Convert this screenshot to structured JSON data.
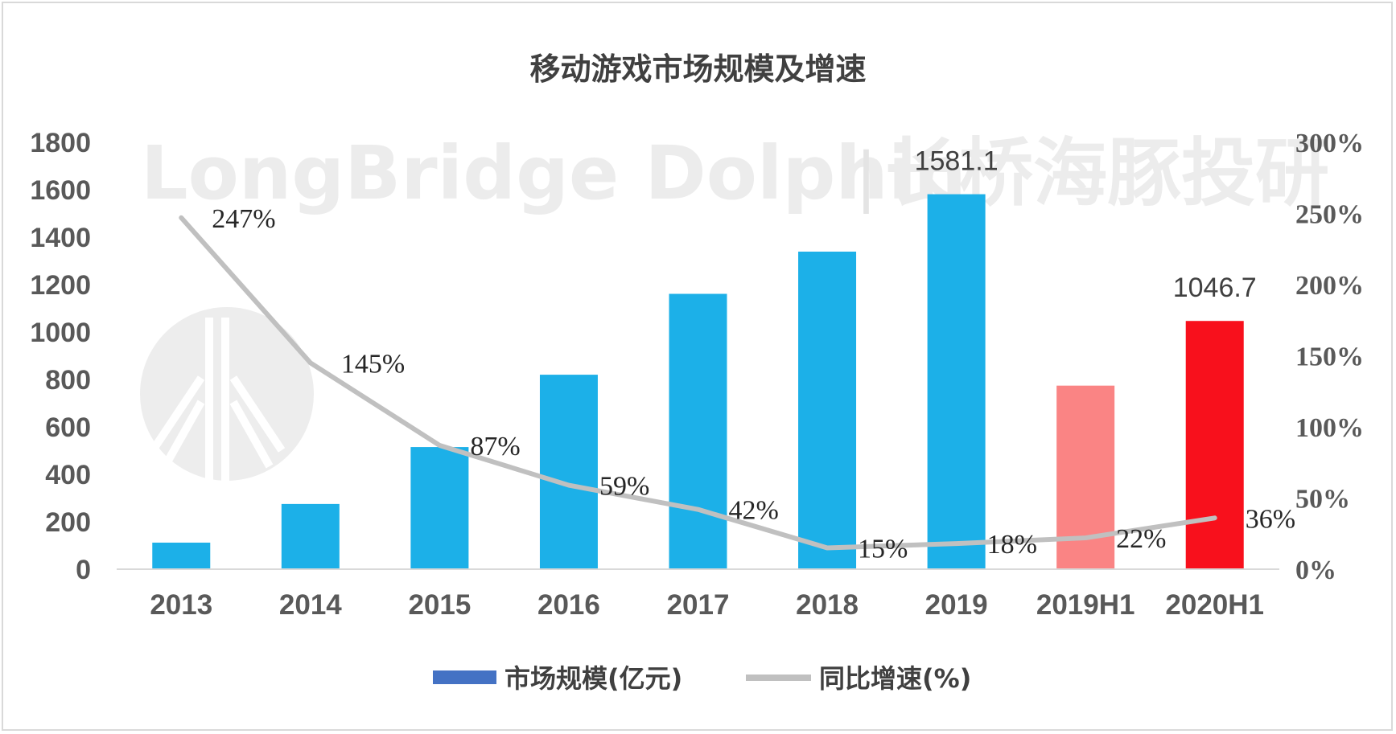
{
  "colors": {
    "bar": "#1cb0e8",
    "bar_2019h1": "#fa8484",
    "bar_2020h1": "#f8101c",
    "line": "#c0c0c0",
    "legend_bar": "#4472c4",
    "axis": "#d9d9d9",
    "watermark": "#ececec"
  },
  "watermark": {
    "text_en": "LongBridge Dolphin",
    "separator": "|",
    "text_cn": "长桥海豚投研"
  },
  "chart_data": {
    "type": "bar",
    "title": "移动游戏市场规模及增速",
    "categories": [
      "2013",
      "2014",
      "2015",
      "2016",
      "2017",
      "2018",
      "2019",
      "2019H1",
      "2020H1"
    ],
    "series": [
      {
        "name": "市场规模(亿元)",
        "type": "bar",
        "axis": "left",
        "values": [
          112,
          275,
          515,
          820,
          1161,
          1339,
          1581.1,
          774,
          1046.7
        ],
        "data_labels": [
          "",
          "",
          "",
          "",
          "",
          "",
          "1581.1",
          "",
          "1046.7"
        ]
      },
      {
        "name": "同比增速(%)",
        "type": "line",
        "axis": "right",
        "values": [
          247,
          145,
          87,
          59,
          42,
          15,
          18,
          22,
          36
        ],
        "data_labels": [
          "247%",
          "145%",
          "87%",
          "59%",
          "42%",
          "15%",
          "18%",
          "22%",
          "36%"
        ]
      }
    ],
    "y_left": {
      "min": 0,
      "max": 1800,
      "ticks": [
        "0",
        "200",
        "400",
        "600",
        "800",
        "1000",
        "1200",
        "1400",
        "1600",
        "1800"
      ]
    },
    "y_right": {
      "min": 0,
      "max": 300,
      "ticks": [
        "0%",
        "50%",
        "100%",
        "150%",
        "200%",
        "250%",
        "300%"
      ]
    },
    "grid": false,
    "legend_position": "bottom",
    "legend": [
      "市场规模(亿元)",
      "同比增速(%)"
    ]
  }
}
